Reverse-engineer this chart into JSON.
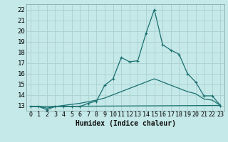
{
  "xlabel": "Humidex (Indice chaleur)",
  "xlim": [
    -0.5,
    23.5
  ],
  "ylim": [
    12.5,
    22.5
  ],
  "xticks": [
    0,
    1,
    2,
    3,
    4,
    5,
    6,
    7,
    8,
    9,
    10,
    11,
    12,
    13,
    14,
    15,
    16,
    17,
    18,
    19,
    20,
    21,
    22,
    23
  ],
  "yticks": [
    13,
    14,
    15,
    16,
    17,
    18,
    19,
    20,
    21,
    22
  ],
  "bg_color": "#c5e8e8",
  "grid_color": "#aad0d0",
  "line_color": "#1a7070",
  "series1_x": [
    0,
    1,
    2,
    3,
    4,
    5,
    6,
    7,
    8,
    9,
    10,
    11,
    12,
    13,
    14,
    15,
    16,
    17,
    18,
    19,
    20,
    21,
    22,
    23
  ],
  "series1_y": [
    12.9,
    12.9,
    12.6,
    12.9,
    12.9,
    12.9,
    12.9,
    13.2,
    13.4,
    14.9,
    15.5,
    17.5,
    17.1,
    17.2,
    19.8,
    22.0,
    18.7,
    18.2,
    17.8,
    16.0,
    15.2,
    13.9,
    13.9,
    13.0
  ],
  "series2_x": [
    0,
    23
  ],
  "series2_y": [
    12.9,
    13.0
  ],
  "series3_x": [
    0,
    1,
    2,
    3,
    4,
    5,
    6,
    7,
    8,
    9,
    10,
    11,
    12,
    13,
    14,
    15,
    16,
    17,
    18,
    19,
    20,
    21,
    22,
    23
  ],
  "series3_y": [
    12.9,
    12.9,
    12.75,
    12.9,
    13.0,
    13.1,
    13.2,
    13.35,
    13.5,
    13.7,
    14.0,
    14.3,
    14.6,
    14.9,
    15.2,
    15.5,
    15.2,
    14.9,
    14.6,
    14.3,
    14.1,
    13.6,
    13.5,
    13.0
  ],
  "tick_fontsize": 6,
  "xlabel_fontsize": 7
}
